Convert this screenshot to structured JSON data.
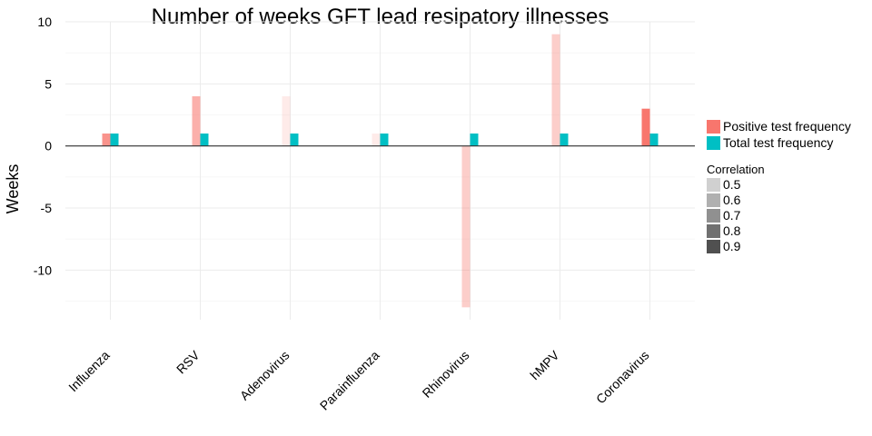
{
  "chart_data": {
    "type": "bar",
    "title": "Number of weeks GFT lead resipatory illnesses",
    "xlabel": "",
    "ylabel": "Weeks",
    "ylim": [
      -14,
      10
    ],
    "yticks": [
      10,
      5,
      0,
      -5,
      -10
    ],
    "grid": true,
    "categories": [
      "Influenza",
      "RSV",
      "Adenovirus",
      "Parainfluenza",
      "Rhinovirus",
      "hMPV",
      "Coronavirus"
    ],
    "series": [
      {
        "name": "Positive test frequency",
        "color": "#F8766D",
        "values": [
          1,
          4,
          4,
          1,
          -13,
          9,
          3
        ],
        "correlation": [
          0.8,
          0.7,
          0.5,
          0.5,
          0.6,
          0.6,
          0.9
        ]
      },
      {
        "name": "Total test frequency",
        "color": "#00BFC4",
        "values": [
          1,
          1,
          1,
          1,
          1,
          1,
          1
        ],
        "correlation": [
          0.9,
          0.9,
          0.9,
          0.9,
          0.9,
          0.9,
          0.9
        ]
      }
    ],
    "legend": {
      "placement": "right",
      "fill_title": "",
      "alpha_title": "Correlation",
      "alpha_levels": [
        "0.5",
        "0.6",
        "0.7",
        "0.8",
        "0.9"
      ],
      "alpha_swatch_colors": [
        "#d0d0d0",
        "#b0b0b0",
        "#909090",
        "#707070",
        "#505050"
      ]
    }
  }
}
